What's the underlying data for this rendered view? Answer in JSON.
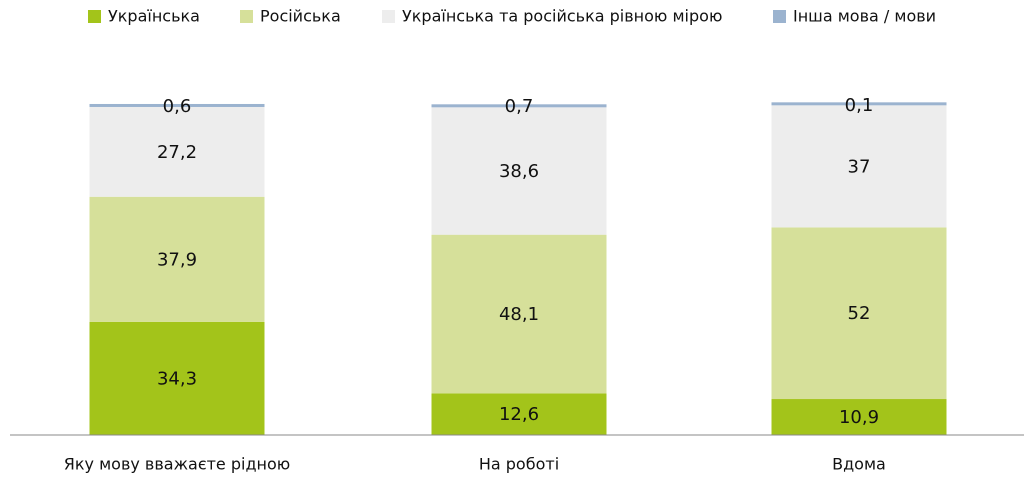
{
  "chart_data": {
    "type": "stacked_bar",
    "categories": [
      "Яку мову вважаєте рідною",
      "На роботі",
      "Вдома"
    ],
    "series": [
      {
        "name": "Українська",
        "color": "#a3c41a",
        "values": [
          34.3,
          12.6,
          10.9
        ],
        "value_labels": [
          "34,3",
          "12,6",
          "10,9"
        ]
      },
      {
        "name": "Російська",
        "color": "#d6e09a",
        "values": [
          37.9,
          48.1,
          52
        ],
        "value_labels": [
          "37,9",
          "48,1",
          "52"
        ]
      },
      {
        "name": "Українська та російська рівною мірою",
        "color": "#ededed",
        "values": [
          27.2,
          38.6,
          37
        ],
        "value_labels": [
          "27,2",
          "38,6",
          "37"
        ]
      },
      {
        "name": "Інша мова / мови",
        "color": "#9bb3cf",
        "values": [
          0.6,
          0.7,
          0.1
        ],
        "value_labels": [
          "0,6",
          "0,7",
          "0,1"
        ]
      }
    ],
    "ylim": [
      0,
      100
    ],
    "legend": "top"
  }
}
